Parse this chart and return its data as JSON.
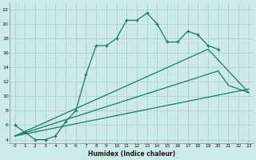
{
  "title": "",
  "xlabel": "Humidex (Indice chaleur)",
  "bg_color": "#cceae7",
  "grid_color": "#aad4d0",
  "line_color": "#1a7a6a",
  "xlim": [
    -0.5,
    23.5
  ],
  "ylim": [
    3.5,
    23
  ],
  "xticks": [
    0,
    1,
    2,
    3,
    4,
    5,
    6,
    7,
    8,
    9,
    10,
    11,
    12,
    13,
    14,
    15,
    16,
    17,
    18,
    19,
    20,
    21,
    22,
    23
  ],
  "yticks": [
    4,
    6,
    8,
    10,
    12,
    14,
    16,
    18,
    20,
    22
  ],
  "curve1_x": [
    0,
    1,
    2,
    3,
    4,
    5,
    6,
    7,
    8,
    9,
    10,
    11,
    12,
    13,
    14,
    15,
    16,
    17,
    18,
    19,
    20
  ],
  "curve1_y": [
    6,
    5,
    4,
    4,
    4.5,
    6.5,
    8,
    13,
    17,
    17,
    18,
    20.5,
    20.5,
    21.5,
    20,
    17.5,
    17.5,
    19,
    18.5,
    17,
    16.5
  ],
  "line2_x": [
    0,
    23
  ],
  "line2_y": [
    4.5,
    11
  ],
  "line3_x": [
    0,
    20,
    21,
    23
  ],
  "line3_y": [
    4.5,
    13.5,
    11.5,
    10.5
  ],
  "line4_x": [
    0,
    19,
    23
  ],
  "line4_y": [
    4.5,
    16.5,
    10.5
  ]
}
